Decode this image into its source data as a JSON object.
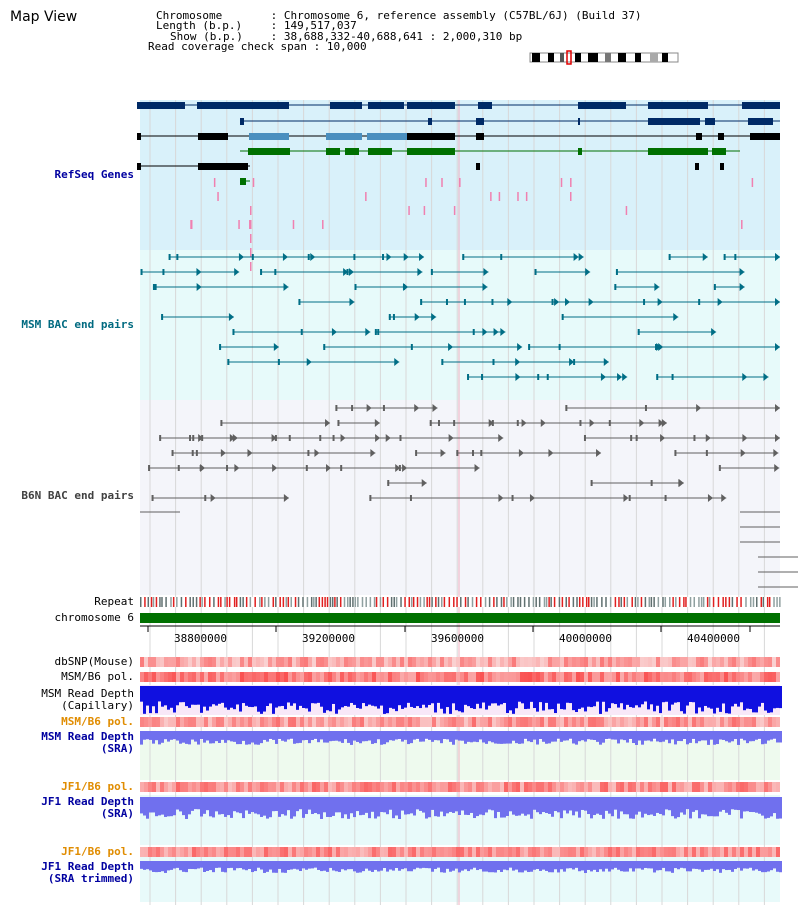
{
  "page_title": "Map View",
  "info": {
    "chromosome_key": "Chromosome",
    "chromosome_val": "Chromosome 6, reference assembly (C57BL/6J) (Build 37)",
    "length_key": "Length (b.p.)",
    "length_val": "149,517,037",
    "show_key": "Show (b.p.)",
    "show_val": "38,688,332-40,688,641 : 2,000,310 bp",
    "span_key": "Read coverage check span",
    "span_val": "10,000"
  },
  "tracks": {
    "refseq": "RefSeq Genes",
    "msm_bac": "MSM BAC end pairs",
    "b6n_bac": "B6N BAC end pairs",
    "repeat": "Repeat",
    "chromosome": "chromosome 6",
    "dbsnp": "dbSNP(Mouse)",
    "msm_b6_pol_1": "MSM/B6 pol.",
    "msm_read_depth_cap_1": "MSM Read Depth",
    "msm_read_depth_cap_2": "(Capillary)",
    "msm_b6_pol_2": "MSM/B6 pol.",
    "msm_read_depth_sra_1": "MSM Read Depth",
    "msm_read_depth_sra_2": "(SRA)",
    "jf1_b6_pol_1": "JF1/B6 pol.",
    "jf1_read_depth_sra_1": "JF1 Read Depth",
    "jf1_read_depth_sra_2": "(SRA)",
    "jf1_b6_pol_2": "JF1/B6 pol.",
    "jf1_read_depth_trim_1": "JF1 Read Depth",
    "jf1_read_depth_trim_2": "(SRA trimmed)"
  },
  "axis": {
    "ticks": [
      "38800000",
      "39200000",
      "39600000",
      "40000000",
      "40400000"
    ]
  },
  "colors": {
    "refseq_bg": "#d9f1fa",
    "msm_bg": "#e7fafa",
    "b6n_bg": "#f4f5fa",
    "gene_navy": "#002a66",
    "gene_mid": "#4a8fbf",
    "gene_green": "#007000",
    "bac_teal": "#006e86",
    "bac_gray": "#606060",
    "chrom_green": "#007000",
    "depth_blue": "#1010e0",
    "depth_violet": "#7070ee",
    "pol_red": "#f0a0a0"
  }
}
